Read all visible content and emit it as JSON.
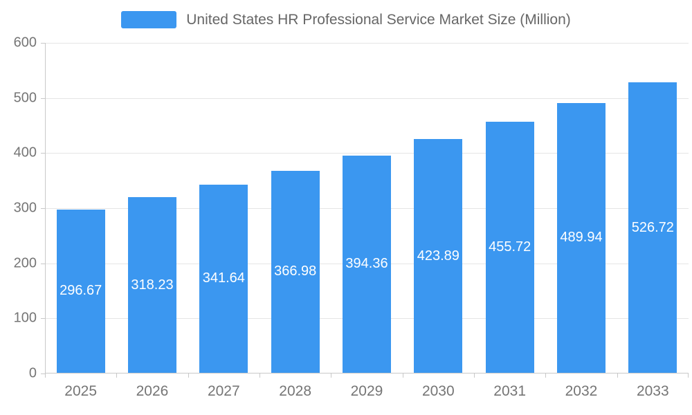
{
  "chart_data": {
    "type": "bar",
    "title": "United States HR Professional Service Market Size (Million)",
    "series_name": "United States HR Professional Service Market Size (Million)",
    "categories": [
      "2025",
      "2026",
      "2027",
      "2028",
      "2029",
      "2030",
      "2031",
      "2032",
      "2033"
    ],
    "values": [
      296.67,
      318.23,
      341.64,
      366.98,
      394.36,
      423.89,
      455.72,
      489.94,
      526.72
    ],
    "value_labels": [
      "296.67",
      "318.23",
      "341.64",
      "366.98",
      "394.36",
      "423.89",
      "455.72",
      "489.94",
      "526.72"
    ],
    "xlabel": "",
    "ylabel": "",
    "ylim": [
      0,
      600
    ],
    "ytick_step": 100,
    "ytick_labels": [
      "0",
      "100",
      "200",
      "300",
      "400",
      "500",
      "600"
    ],
    "grid": true,
    "legend_position": "top",
    "colors": {
      "bar": "#3B97F0",
      "value_label": "#FFFFFF",
      "axis_label": "#757575",
      "title": "#666666",
      "gridline": "#E5E5E5",
      "axis_line": "#C8C8C8",
      "background": "#FFFFFF"
    }
  }
}
